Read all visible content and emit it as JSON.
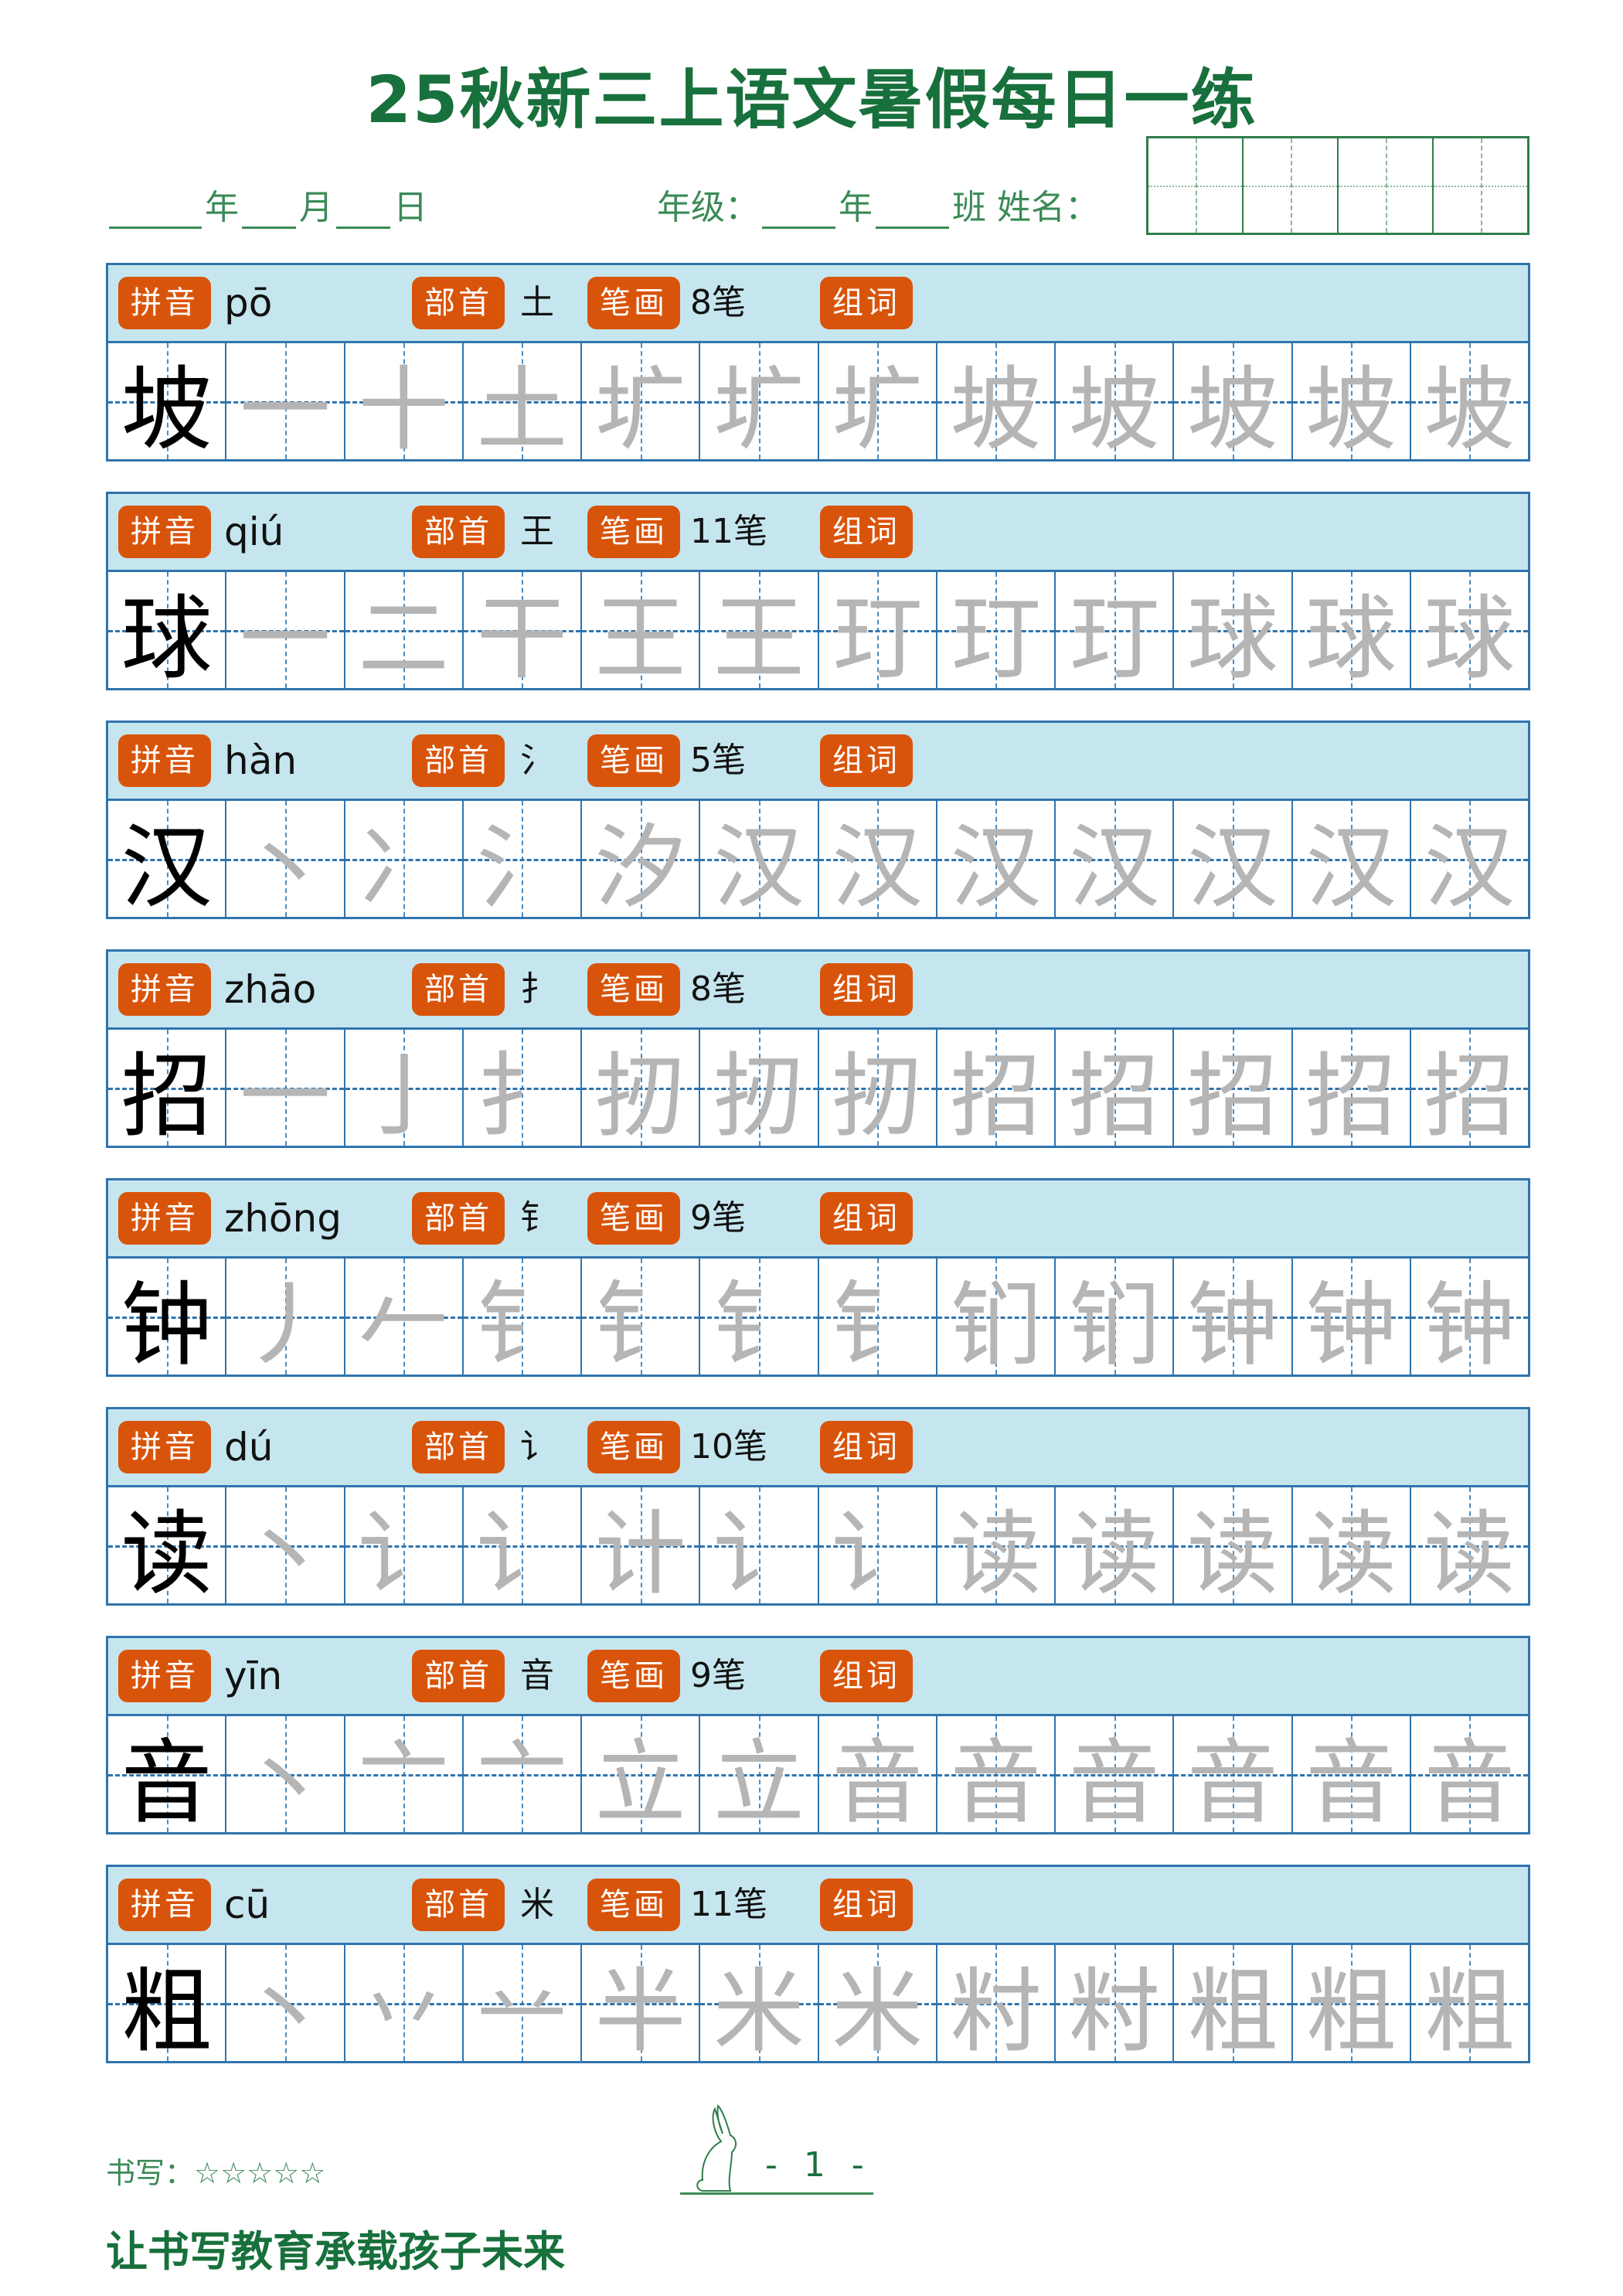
{
  "title": "25秋新三上语文暑假每日一练",
  "date_line": {
    "year": "年",
    "month": "月",
    "day": "日"
  },
  "class_line": {
    "grade_label": "年级：",
    "year": "年",
    "class": "班",
    "name_label": "姓名："
  },
  "labels": {
    "pinyin": "拼音",
    "radical": "部首",
    "strokes": "笔画",
    "words": "组词"
  },
  "rows": [
    {
      "char": "坡",
      "pinyin": "pō",
      "radical": "土",
      "strokes": "8笔",
      "trace": [
        "一",
        "十",
        "土",
        "圹",
        "圹",
        "圹",
        "坡",
        "坡",
        "坡",
        "坡",
        "坡"
      ]
    },
    {
      "char": "球",
      "pinyin": "qiú",
      "radical": "王",
      "strokes": "11笔",
      "trace": [
        "一",
        "二",
        "干",
        "王",
        "王",
        "玎",
        "玎",
        "玎",
        "球",
        "球",
        "球"
      ]
    },
    {
      "char": "汉",
      "pinyin": "hàn",
      "radical": "氵",
      "strokes": "5笔",
      "trace": [
        "丶",
        "冫",
        "氵",
        "汐",
        "汉",
        "汉",
        "汉",
        "汉",
        "汉",
        "汉",
        "汉"
      ]
    },
    {
      "char": "招",
      "pinyin": "zhāo",
      "radical": "扌",
      "strokes": "8笔",
      "trace": [
        "一",
        "亅",
        "扌",
        "扨",
        "扨",
        "扨",
        "招",
        "招",
        "招",
        "招",
        "招"
      ]
    },
    {
      "char": "钟",
      "pinyin": "zhōng",
      "radical": "钅",
      "strokes": "9笔",
      "trace": [
        "丿",
        "𠂉",
        "钅",
        "钅",
        "钅",
        "钅",
        "钔",
        "钔",
        "钟",
        "钟",
        "钟"
      ]
    },
    {
      "char": "读",
      "pinyin": "dú",
      "radical": "讠",
      "strokes": "10笔",
      "trace": [
        "丶",
        "讠",
        "讠",
        "计",
        "讠",
        "讠",
        "读",
        "读",
        "读",
        "读",
        "读"
      ]
    },
    {
      "char": "音",
      "pinyin": "yīn",
      "radical": "音",
      "strokes": "9笔",
      "trace": [
        "丶",
        "亠",
        "亠",
        "立",
        "立",
        "音",
        "音",
        "音",
        "音",
        "音",
        "音"
      ]
    },
    {
      "char": "粗",
      "pinyin": "cū",
      "radical": "米",
      "strokes": "11笔",
      "trace": [
        "丶",
        "丷",
        "䒑",
        "半",
        "米",
        "米",
        "籿",
        "籿",
        "粗",
        "粗",
        "粗"
      ]
    }
  ],
  "footer": {
    "rating_label": "书写：",
    "stars": "☆☆☆☆☆",
    "page": "- 1 -",
    "slogan": "让书写教育承载孩子未来"
  },
  "colors": {
    "title": "#18703c",
    "badge": "#d9540b",
    "header_bg": "#c6e6ef",
    "grid": "#2f74ad"
  }
}
